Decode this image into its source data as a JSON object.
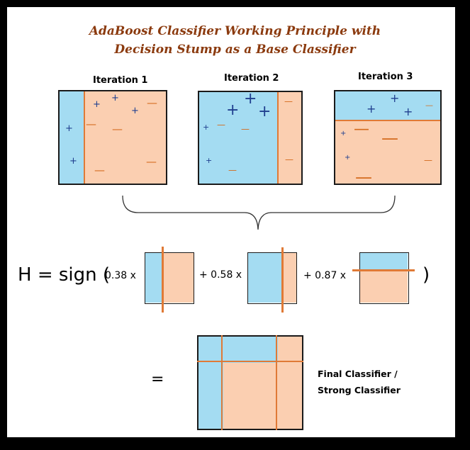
{
  "title": {
    "line1": "AdaBoost Classifier Working Principle with",
    "line2": "Decision Stump as a Base Classifier"
  },
  "iterations": [
    {
      "label": "Iteration 1"
    },
    {
      "label": "Iteration 2"
    },
    {
      "label": "Iteration 3"
    }
  ],
  "formula": {
    "prefix": "H = sign (",
    "terms": [
      {
        "text": "0.38 x"
      },
      {
        "text": "+ 0.58 x"
      },
      {
        "text": "+ 0.87 x"
      }
    ],
    "suffix": ")",
    "equals": "="
  },
  "final": {
    "line1": "Final Classifier /",
    "line2": "Strong Classifier"
  },
  "symbols": {
    "plus": "+",
    "minus": "—"
  },
  "colors": {
    "blue_region": "#a4dcf2",
    "orange_region": "#fbcfb1",
    "boundary": "#e07a36",
    "plus": "#1f3f8f",
    "minus": "#d46a1c",
    "title": "#8b3a0e"
  }
}
